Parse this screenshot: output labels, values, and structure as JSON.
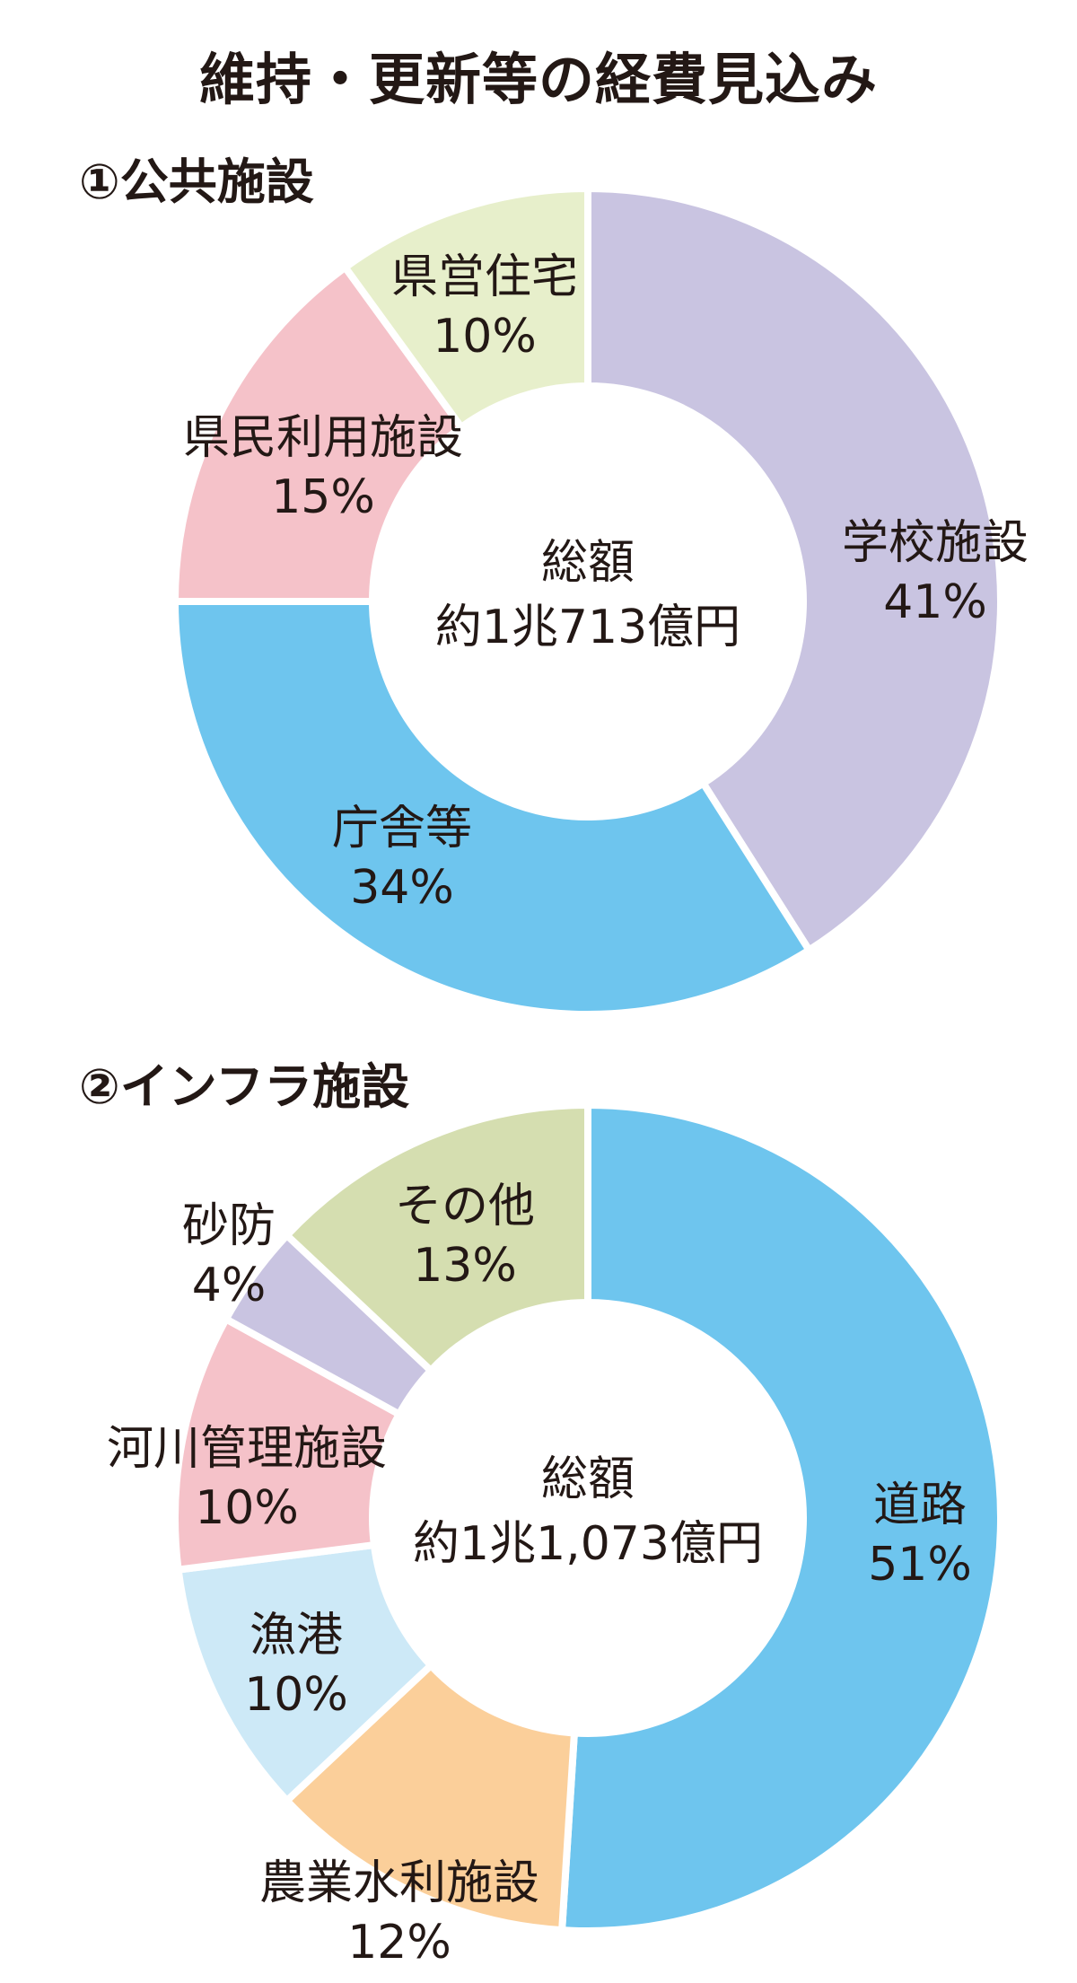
{
  "title": "維持・更新等の経費見込み",
  "colors": {
    "lavender": "#c9c4e1",
    "sky_blue": "#6ec5ee",
    "pink": "#f5c2c9",
    "light_green": "#e7efcb",
    "sage_green": "#d5deb0",
    "peach": "#fbcf9a",
    "light_blue": "#cde9f7"
  },
  "chart_data": [
    {
      "type": "pie",
      "subtype": "donut",
      "title": "①公共施設",
      "center_label": {
        "line1": "総額",
        "line2": "約1兆713億円"
      },
      "slices": [
        {
          "name": "学校施設",
          "value": 41,
          "label": "41%",
          "color": "#c9c4e1"
        },
        {
          "name": "庁舎等",
          "value": 34,
          "label": "34%",
          "color": "#6ec5ee"
        },
        {
          "name": "県民利用施設",
          "value": 15,
          "label": "15%",
          "color": "#f5c2c9"
        },
        {
          "name": "県営住宅",
          "value": 10,
          "label": "10%",
          "color": "#e7efcb"
        }
      ]
    },
    {
      "type": "pie",
      "subtype": "donut",
      "title": "②インフラ施設",
      "center_label": {
        "line1": "総額",
        "line2": "約1兆1,073億円"
      },
      "slices": [
        {
          "name": "道路",
          "value": 51,
          "label": "51%",
          "color": "#6ec5ee"
        },
        {
          "name": "農業水利施設",
          "value": 12,
          "label": "12%",
          "color": "#fbcf9a"
        },
        {
          "name": "漁港",
          "value": 10,
          "label": "10%",
          "color": "#cde9f7"
        },
        {
          "name": "河川管理施設",
          "value": 10,
          "label": "10%",
          "color": "#f5c2c9"
        },
        {
          "name": "砂防",
          "value": 4,
          "label": "4%",
          "color": "#c9c4e1"
        },
        {
          "name": "その他",
          "value": 13,
          "label": "13%",
          "color": "#d5deb0"
        }
      ]
    }
  ]
}
